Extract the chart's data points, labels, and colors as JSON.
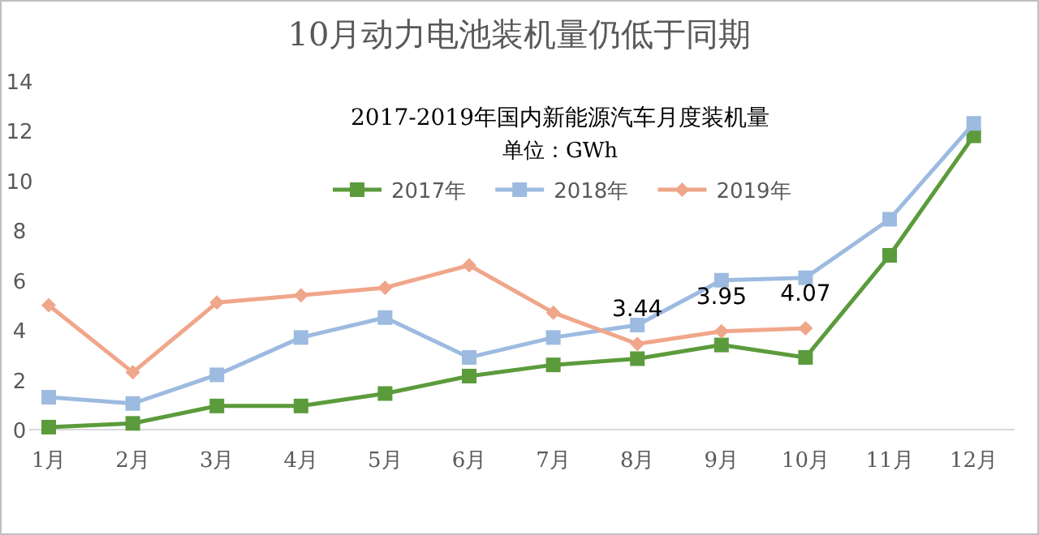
{
  "chart_data": {
    "type": "line",
    "title": "10月动力电池装机量仍低于同期",
    "subtitle": "2017-2019年国内新能源汽车月度装机量",
    "annotations": [
      "单位：GWh"
    ],
    "categories": [
      "1月",
      "2月",
      "3月",
      "4月",
      "5月",
      "6月",
      "7月",
      "8月",
      "9月",
      "10月",
      "11月",
      "12月"
    ],
    "series": [
      {
        "name": "2017年",
        "color": "#5b9b3c",
        "marker": "square",
        "values": [
          0.1,
          0.25,
          0.95,
          0.95,
          1.45,
          2.15,
          2.6,
          2.85,
          3.4,
          2.9,
          7.0,
          11.8
        ]
      },
      {
        "name": "2018年",
        "color": "#9dbbe0",
        "marker": "square",
        "values": [
          1.3,
          1.05,
          2.2,
          3.7,
          4.5,
          2.9,
          3.7,
          4.2,
          6.0,
          6.1,
          8.45,
          12.3
        ]
      },
      {
        "name": "2019年",
        "color": "#f0a68a",
        "marker": "diamond",
        "values": [
          5.0,
          2.3,
          5.1,
          5.4,
          5.7,
          6.6,
          4.7,
          3.44,
          3.95,
          4.07,
          null,
          null
        ],
        "value_labels": [
          null,
          null,
          null,
          null,
          null,
          null,
          null,
          "3.44",
          "3.95",
          "4.07",
          null,
          null
        ]
      }
    ],
    "ylim": [
      0,
      14
    ],
    "yticks": [
      0,
      2,
      4,
      6,
      8,
      10,
      12,
      14
    ],
    "grid": false,
    "legend": "top"
  }
}
